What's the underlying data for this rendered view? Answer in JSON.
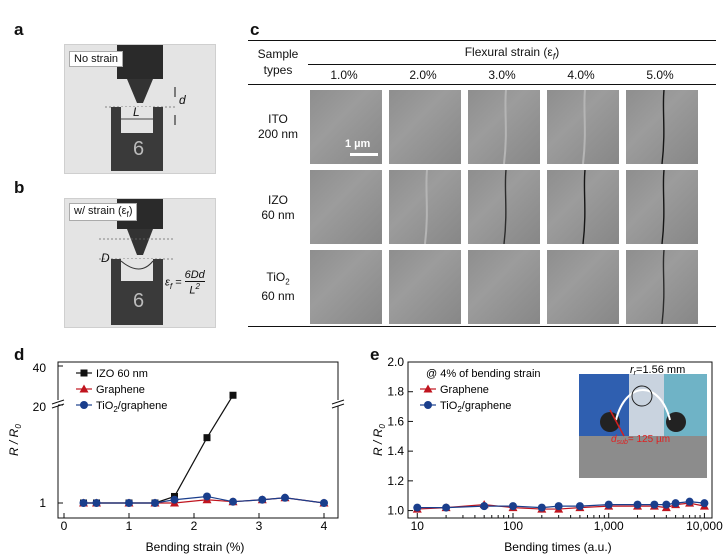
{
  "panels": {
    "a": "a",
    "b": "b",
    "c": "c",
    "d": "d",
    "e": "e"
  },
  "panel_a": {
    "tag": "No strain",
    "d_label": "d",
    "L_label": "L"
  },
  "panel_b": {
    "tag": "w/ strain (ε",
    "tag_sub": "f",
    "tag_end": ")",
    "D_label": "D",
    "formula_lhs": "ε",
    "formula_lhs_sub": "f",
    "formula_eq": " = ",
    "formula_num": "6Dd",
    "formula_den": "L",
    "formula_den_sup": "2"
  },
  "panel_c": {
    "sample_header_1": "Sample",
    "sample_header_2": "types",
    "strain_header": "Flexural strain (ε",
    "strain_header_sub": "f",
    "strain_header_end": ")",
    "strains": [
      "1.0%",
      "2.0%",
      "3.0%",
      "4.0%",
      "5.0%"
    ],
    "rows": [
      {
        "line1": "ITO",
        "line2": "200 nm"
      },
      {
        "line1": "IZO",
        "line2": "60 nm"
      },
      {
        "line1": "TiO",
        "line1_sub": "2",
        "line2": "60 nm"
      }
    ],
    "scale_bar": "1 µm"
  },
  "chart_data": [
    {
      "panel": "d",
      "type": "line",
      "xlabel": "Bending strain (%)",
      "ylabel": "R / R",
      "ylabel_sub": "0",
      "xlim": [
        0,
        4
      ],
      "xticks": [
        "0",
        "1",
        "2",
        "3",
        "4"
      ],
      "yticks": [
        "1",
        "20",
        "40"
      ],
      "broken_axis": true,
      "legend_placement": "top-left",
      "series": [
        {
          "name": "IZO 60 nm",
          "color": "#111111",
          "marker": "square",
          "x": [
            0.3,
            0.5,
            1.0,
            1.4,
            1.7,
            2.2,
            2.6
          ],
          "y": [
            1.0,
            1.0,
            1.0,
            1.0,
            1.1,
            2.0,
            25.0
          ]
        },
        {
          "name": "Graphene",
          "color": "#c0141e",
          "marker": "triangle",
          "x": [
            0.3,
            0.5,
            1.0,
            1.4,
            1.7,
            2.2,
            2.6,
            3.05,
            3.4,
            4.0
          ],
          "y": [
            1.0,
            1.0,
            1.0,
            1.0,
            1.0,
            1.05,
            1.02,
            1.05,
            1.08,
            1.0
          ]
        },
        {
          "name": "TiO2/graphene",
          "name_main": "TiO",
          "name_sub": "2",
          "name_end": "/graphene",
          "color": "#1a3e8c",
          "marker": "circle",
          "x": [
            0.3,
            0.5,
            1.0,
            1.4,
            1.7,
            2.2,
            2.6,
            3.05,
            3.4,
            4.0
          ],
          "y": [
            1.0,
            1.0,
            1.0,
            1.0,
            1.05,
            1.1,
            1.02,
            1.05,
            1.08,
            1.0
          ]
        }
      ]
    },
    {
      "panel": "e",
      "type": "line",
      "xlabel": "Bending times (a.u.)",
      "ylabel": "R / R",
      "ylabel_sub": "0",
      "xscale": "log",
      "xlim": [
        8,
        12000
      ],
      "ylim": [
        0.95,
        2.0
      ],
      "xticks": [
        "10",
        "100",
        "1,000",
        "10,000"
      ],
      "yticks": [
        "1.0",
        "1.2",
        "1.4",
        "1.6",
        "1.8",
        "2.0"
      ],
      "annotation": "@ 4% of bending strain",
      "legend_placement": "top-left",
      "series": [
        {
          "name": "Graphene",
          "color": "#c0141e",
          "marker": "triangle",
          "x": [
            10,
            20,
            50,
            100,
            200,
            300,
            500,
            1000,
            2000,
            3000,
            4000,
            5000,
            7000,
            10000
          ],
          "y": [
            1.01,
            1.02,
            1.04,
            1.02,
            1.01,
            1.01,
            1.02,
            1.03,
            1.03,
            1.03,
            1.02,
            1.04,
            1.05,
            1.03
          ]
        },
        {
          "name": "TiO2/graphene",
          "name_main": "TiO",
          "name_sub": "2",
          "name_end": "/graphene",
          "color": "#1a3e8c",
          "marker": "circle",
          "x": [
            10,
            20,
            50,
            100,
            200,
            300,
            500,
            1000,
            2000,
            3000,
            4000,
            5000,
            7000,
            10000
          ],
          "y": [
            1.02,
            1.02,
            1.03,
            1.03,
            1.02,
            1.03,
            1.03,
            1.04,
            1.04,
            1.04,
            1.04,
            1.05,
            1.06,
            1.05
          ]
        }
      ],
      "inset": {
        "r_label": "r",
        "r_sub": "r",
        "r_value": "=1.56 mm",
        "d_label": "d",
        "d_sub": "sub",
        "d_value": "= 125 µm"
      }
    }
  ]
}
